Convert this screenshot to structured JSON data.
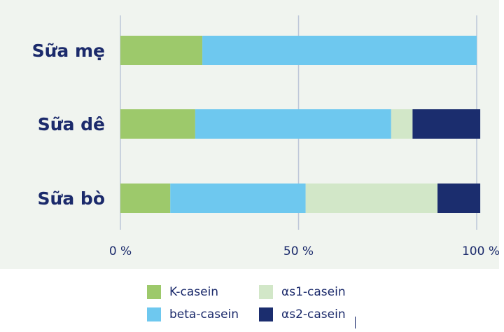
{
  "chart_data": {
    "type": "bar",
    "orientation": "horizontal",
    "stacked": true,
    "categories": [
      "Sữa mẹ",
      "Sữa dê",
      "Sữa bò"
    ],
    "series": [
      {
        "name": "K-casein",
        "color": "#9dc96b",
        "values": [
          23,
          21,
          14
        ]
      },
      {
        "name": "beta-casein",
        "color": "#6ec8ef",
        "values": [
          77,
          55,
          38
        ]
      },
      {
        "name": "αs1-casein",
        "color": "#d2e7c8",
        "values": [
          0,
          6,
          37
        ]
      },
      {
        "name": "αs2-casein",
        "color": "#1b2d6e",
        "values": [
          0,
          19,
          12
        ]
      }
    ],
    "xlim": [
      0,
      100
    ],
    "xticks": [
      "0 %",
      "50 %",
      "100 %"
    ],
    "grid": true,
    "legend_position": "bottom"
  },
  "colors": {
    "panel_background": "#f0f4ef",
    "text": "#1b2a6b",
    "gridline": "#bcc6d8"
  }
}
